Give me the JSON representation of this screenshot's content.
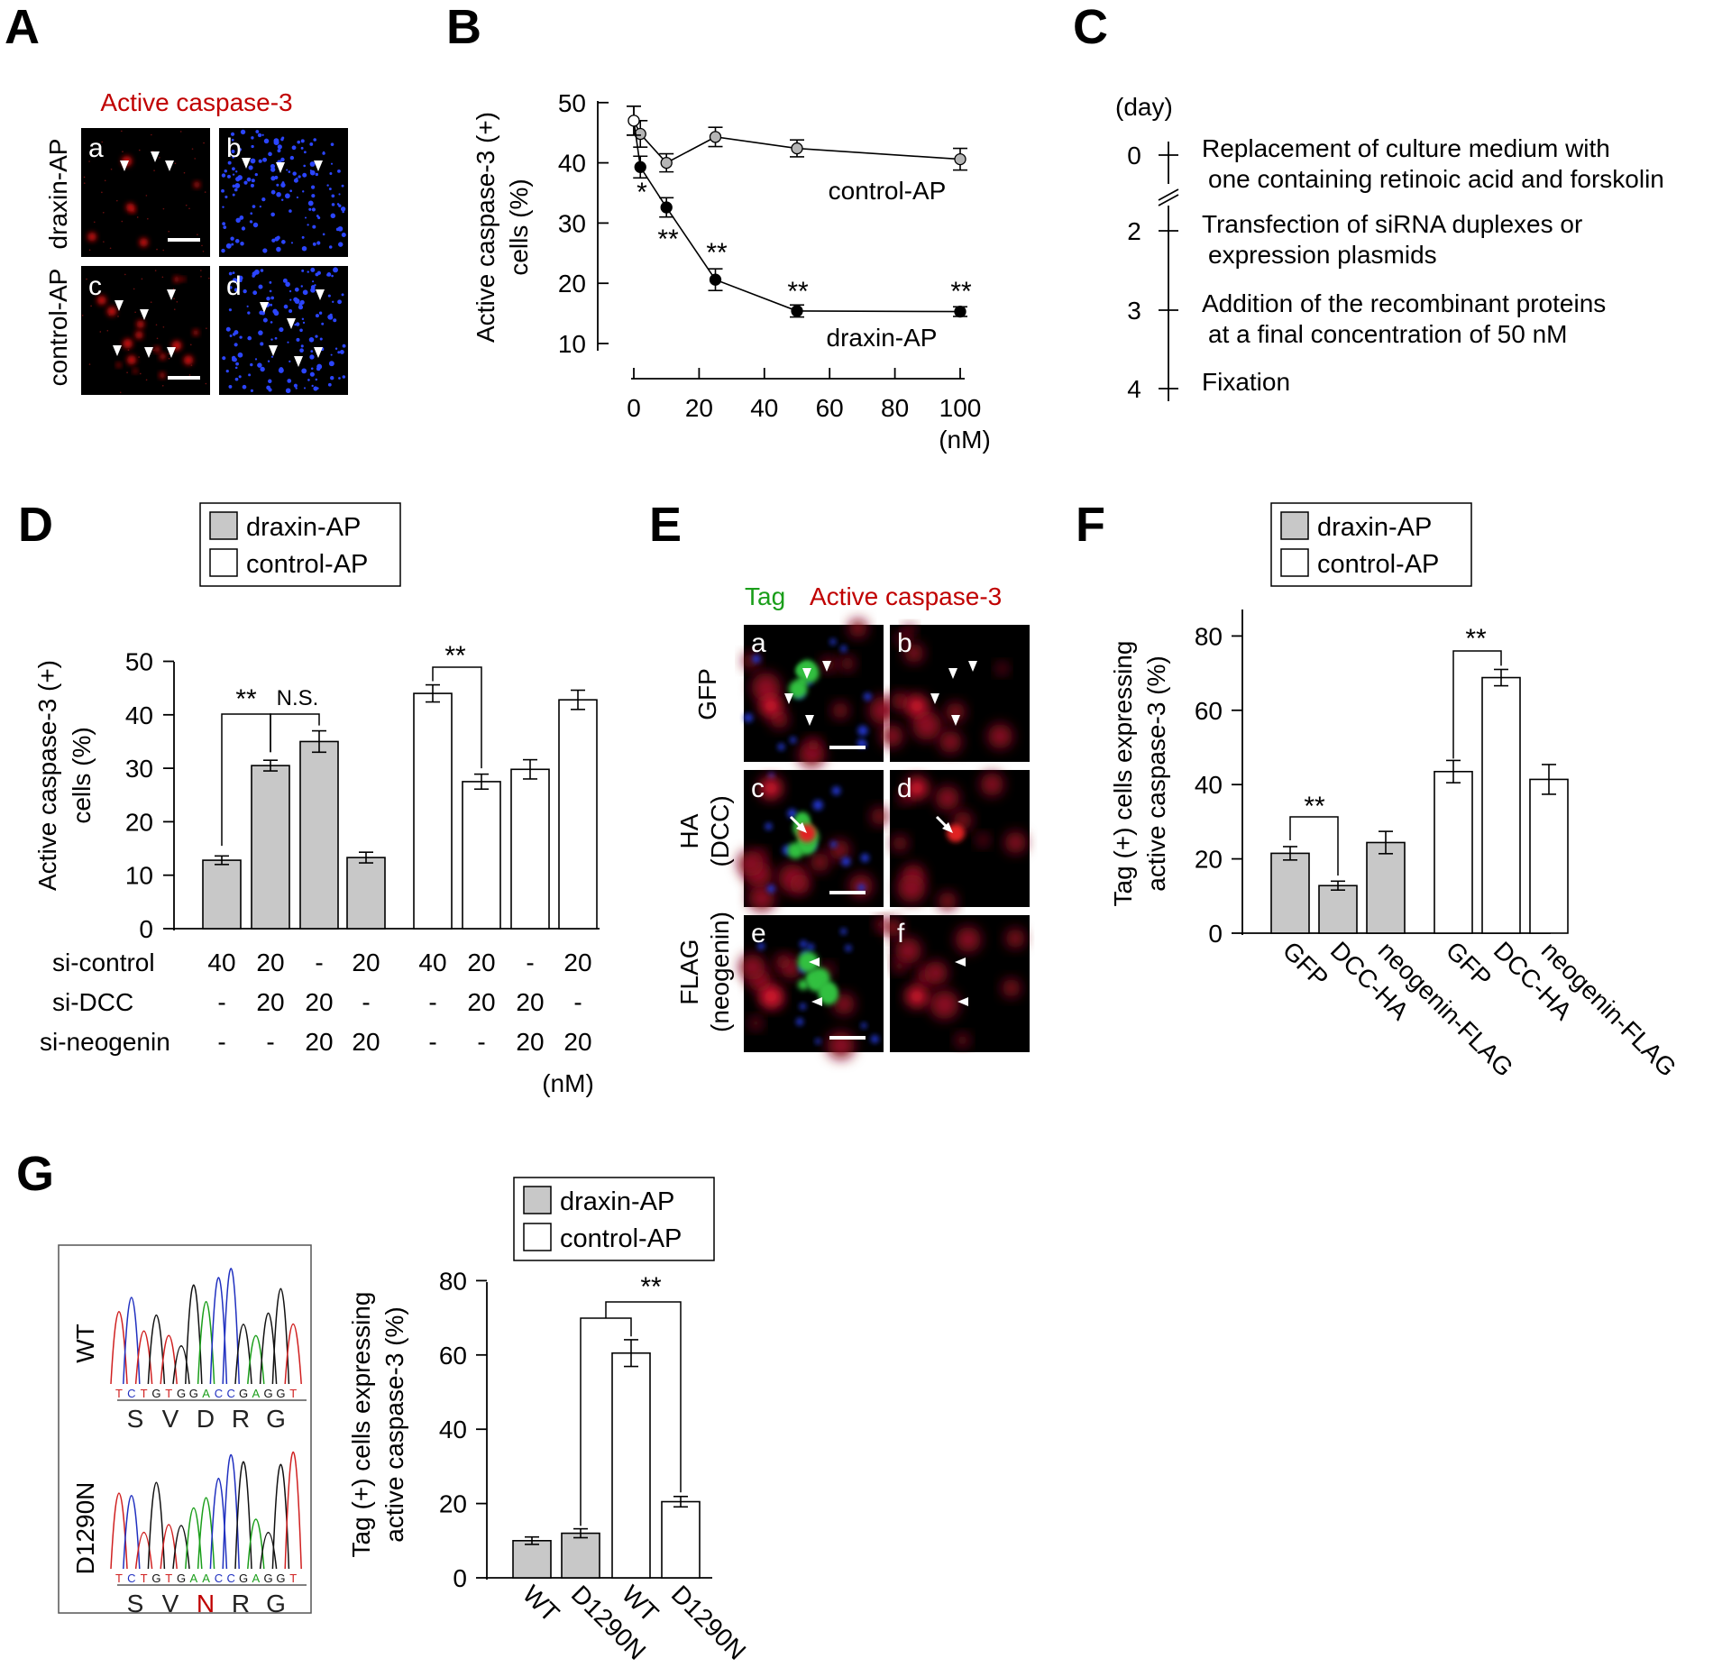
{
  "colors": {
    "red": "#c00000",
    "green": "#1a9e1a",
    "gray": "#c8c8c8",
    "micro_bg": "#000000",
    "dapi": "#3050ff"
  },
  "panelA": {
    "label": "A",
    "title": "Active caspase-3",
    "row_labels": [
      "draxin-AP",
      "control-AP"
    ],
    "subpanels": [
      "a",
      "b",
      "c",
      "d"
    ]
  },
  "panelB": {
    "label": "B",
    "ylabel_1": "Active caspase-3 (+)",
    "ylabel_2": "cells (%)",
    "unit": "(nM)",
    "yticks": [
      "10",
      "20",
      "30",
      "40",
      "50"
    ],
    "xticks": [
      "0",
      "20",
      "40",
      "60",
      "80",
      "100"
    ]
  },
  "chart_data": [
    {
      "panel": "B",
      "type": "line",
      "title": "",
      "xlabel": "(nM)",
      "ylabel": "Active caspase-3 (+) cells (%)",
      "xlim": [
        0,
        100
      ],
      "ylim": [
        10,
        50
      ],
      "series": [
        {
          "name": "control-AP",
          "x": [
            0,
            2,
            10,
            25,
            50,
            100
          ],
          "y": [
            47,
            44.8,
            40,
            44.3,
            42.4,
            40.6
          ],
          "err": [
            2.4,
            2.2,
            1.5,
            1.6,
            1.4,
            1.8
          ]
        },
        {
          "name": "draxin-AP",
          "x": [
            0,
            2,
            10,
            25,
            50,
            100
          ],
          "y": [
            47,
            39.3,
            32.6,
            20.6,
            15.4,
            15.3
          ],
          "err": [
            2.4,
            1.8,
            1.6,
            1.8,
            1.0,
            0.8
          ]
        }
      ],
      "annotations": [
        "*",
        "**",
        "**",
        "**",
        "**"
      ]
    },
    {
      "panel": "D",
      "type": "bar",
      "ylabel": "Active caspase-3 (+) cells (%)",
      "ylim": [
        0,
        50
      ],
      "series": [
        {
          "name": "draxin-AP",
          "values": [
            12.8,
            30.5,
            35.0,
            13.3
          ],
          "err": [
            0.8,
            1.0,
            2.0,
            1.0
          ]
        },
        {
          "name": "control-AP",
          "values": [
            44.0,
            27.5,
            29.8,
            42.8
          ],
          "err": [
            1.6,
            1.4,
            1.8,
            1.8
          ]
        }
      ],
      "conditions": {
        "si-control": [
          "40",
          "20",
          "-",
          "20",
          "40",
          "20",
          "-",
          "20"
        ],
        "si-DCC": [
          "-",
          "20",
          "20",
          "-",
          "-",
          "20",
          "20",
          "-"
        ],
        "si-neogenin": [
          "-",
          "-",
          "20",
          "20",
          "-",
          "-",
          "20",
          "20"
        ]
      },
      "significance": [
        "**",
        "N.S.",
        "**"
      ],
      "unit": "(nM)"
    },
    {
      "panel": "F",
      "type": "bar",
      "ylabel": "Tag (+) cells expressing active caspase-3 (%)",
      "ylim": [
        0,
        80
      ],
      "categories": [
        "GFP",
        "DCC-HA",
        "neogenin-FLAG"
      ],
      "series": [
        {
          "name": "draxin-AP",
          "values": [
            21.5,
            12.8,
            24.4
          ],
          "err": [
            1.8,
            1.2,
            3.0
          ]
        },
        {
          "name": "control-AP",
          "values": [
            43.5,
            68.8,
            41.4
          ],
          "err": [
            3.0,
            2.2,
            4.0
          ]
        }
      ],
      "significance": [
        "**",
        "**"
      ]
    },
    {
      "panel": "G",
      "type": "bar",
      "ylabel": "Tag (+) cells expressing active caspase-3 (%)",
      "ylim": [
        0,
        80
      ],
      "categories": [
        "WT",
        "D1290N"
      ],
      "series": [
        {
          "name": "draxin-AP",
          "values": [
            10.0,
            12.0
          ],
          "err": [
            1.0,
            1.2
          ]
        },
        {
          "name": "control-AP",
          "values": [
            60.5,
            20.5
          ],
          "err": [
            3.6,
            1.4
          ]
        }
      ],
      "significance": [
        "**"
      ]
    }
  ],
  "panelC": {
    "label": "C",
    "unit": "(day)",
    "steps": [
      {
        "day": "0",
        "l1": "Replacement of culture medium with",
        "l2": "one containing retinoic acid and forskolin"
      },
      {
        "day": "2",
        "l1": "Transfection of siRNA duplexes or",
        "l2": "expression plasmids"
      },
      {
        "day": "3",
        "l1": "Addition of the recombinant proteins",
        "l2": "at a final concentration of 50 nM"
      },
      {
        "day": "4",
        "l1": "Fixation",
        "l2": ""
      }
    ]
  },
  "panelD": {
    "label": "D",
    "legend": [
      "draxin-AP",
      "control-AP"
    ],
    "ylabel_1": "Active caspase-3 (+)",
    "ylabel_2": "cells (%)",
    "yticks": [
      "0",
      "10",
      "20",
      "30",
      "40",
      "50"
    ],
    "row_names": [
      "si-control",
      "si-DCC",
      "si-neogenin"
    ],
    "unit": "(nM)"
  },
  "panelE": {
    "label": "E",
    "title_tag": "Tag",
    "title_casp": "Active caspase-3",
    "rows": [
      [
        "GFP",
        ""
      ],
      [
        "HA",
        "(DCC)"
      ],
      [
        "FLAG",
        "(neogenin)"
      ]
    ],
    "subpanels": [
      "a",
      "b",
      "c",
      "d",
      "e",
      "f"
    ]
  },
  "panelF": {
    "label": "F",
    "legend": [
      "draxin-AP",
      "control-AP"
    ],
    "ylabel_1": "Tag (+) cells expressing",
    "ylabel_2": "active caspase-3 (%)",
    "yticks": [
      "0",
      "20",
      "40",
      "60",
      "80"
    ],
    "xlabels": [
      "GFP",
      "DCC-HA",
      "neogenin-FLAG",
      "GFP",
      "DCC-HA",
      "neogenin-FLAG"
    ]
  },
  "panelG": {
    "label": "G",
    "legend": [
      "draxin-AP",
      "control-AP"
    ],
    "ylabel_1": "Tag (+) cells expressing",
    "ylabel_2": "active caspase-3 (%)",
    "yticks": [
      "0",
      "20",
      "40",
      "60",
      "80"
    ],
    "xlabels": [
      "WT",
      "D1290N",
      "WT",
      "D1290N"
    ],
    "seq_rows": [
      {
        "name": "WT",
        "bases": "TCTGTGGACCGAGGT",
        "aa": [
          "S",
          "V",
          "D",
          "R",
          "G"
        ]
      },
      {
        "name": "D1290N",
        "bases": "TCTGTGAACCGAGGT",
        "aa": [
          "S",
          "V",
          "N",
          "R",
          "G"
        ]
      }
    ]
  }
}
